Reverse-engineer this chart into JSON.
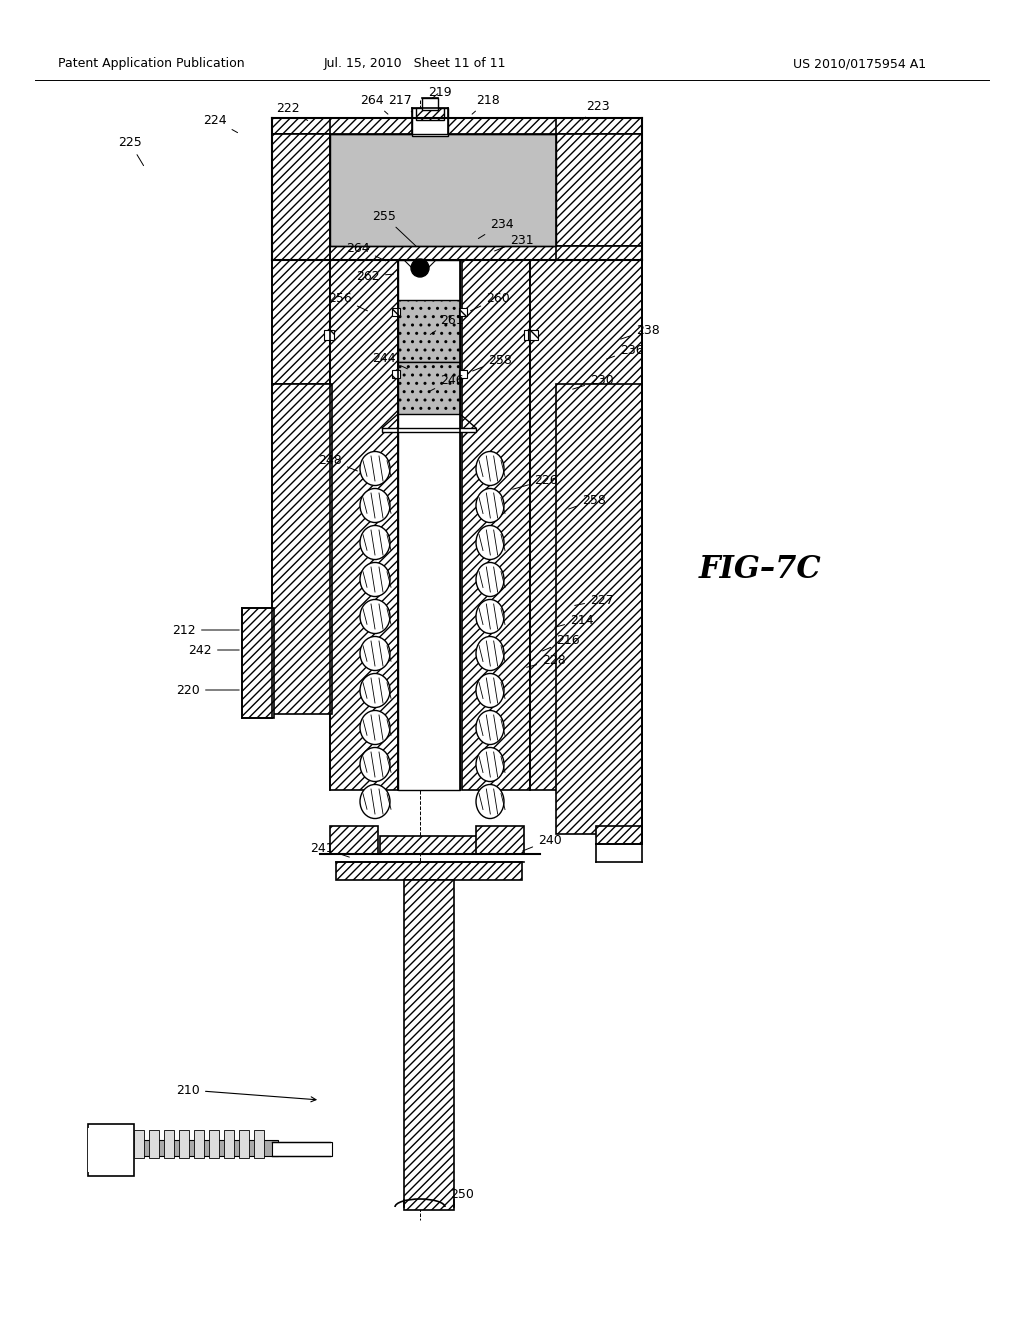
{
  "bg": "#ffffff",
  "header_left": "Patent Application Publication",
  "header_mid": "Jul. 15, 2010   Sheet 11 of 11",
  "header_right": "US 2010/0175954 A1",
  "fig_label": "FIG–7C",
  "lw": 1.2,
  "fs": 9
}
